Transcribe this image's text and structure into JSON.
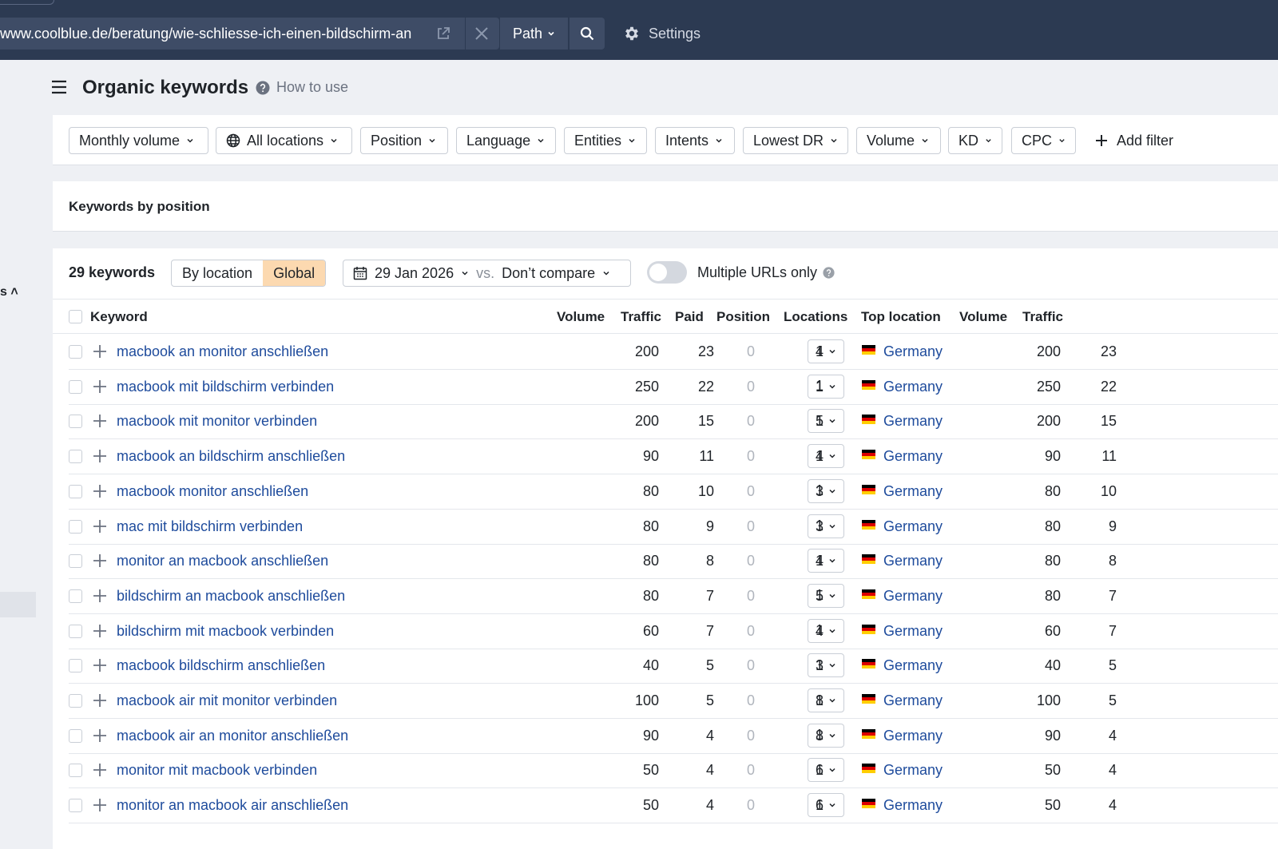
{
  "toolbar": {
    "url": "www.coolblue.de/beratung/wie-schliesse-ich-einen-bildschirm-an",
    "path_label": "Path",
    "settings_label": "Settings"
  },
  "left_rail": {
    "fragment": "s"
  },
  "header": {
    "title": "Organic keywords",
    "how_to": "How to use"
  },
  "filters": [
    "Monthly volume",
    "All locations",
    "Position",
    "Language",
    "Entities",
    "Intents",
    "Lowest DR",
    "Volume",
    "KD",
    "CPC"
  ],
  "add_filter": "Add filter",
  "section_title": "Keywords by position",
  "controls": {
    "count": "29 keywords",
    "by_location": "By location",
    "global": "Global",
    "date": "29 Jan 2026",
    "vs": "vs.",
    "compare": "Don’t compare",
    "multiple_urls": "Multiple URLs only"
  },
  "columns": {
    "keyword": "Keyword",
    "volume": "Volume",
    "traffic": "Traffic",
    "paid": "Paid",
    "position": "Position",
    "locations": "Locations",
    "top_location": "Top location",
    "volume2": "Volume",
    "traffic2": "Traffic"
  },
  "rows": [
    {
      "keyword": "macbook an monitor anschließen",
      "volume": "200",
      "traffic": "23",
      "paid": "0",
      "position": "4",
      "locations": "1",
      "country": "Germany",
      "loc_volume": "200",
      "loc_traffic": "23"
    },
    {
      "keyword": "macbook mit bildschirm verbinden",
      "volume": "250",
      "traffic": "22",
      "paid": "0",
      "position": "1",
      "locations": "1",
      "country": "Germany",
      "loc_volume": "250",
      "loc_traffic": "22"
    },
    {
      "keyword": "macbook mit monitor verbinden",
      "volume": "200",
      "traffic": "15",
      "paid": "0",
      "position": "5",
      "locations": "1",
      "country": "Germany",
      "loc_volume": "200",
      "loc_traffic": "15"
    },
    {
      "keyword": "macbook an bildschirm anschließen",
      "volume": "90",
      "traffic": "11",
      "paid": "0",
      "position": "4",
      "locations": "1",
      "country": "Germany",
      "loc_volume": "90",
      "loc_traffic": "11"
    },
    {
      "keyword": "macbook monitor anschließen",
      "volume": "80",
      "traffic": "10",
      "paid": "0",
      "position": "3",
      "locations": "1",
      "country": "Germany",
      "loc_volume": "80",
      "loc_traffic": "10"
    },
    {
      "keyword": "mac mit bildschirm verbinden",
      "volume": "80",
      "traffic": "9",
      "paid": "0",
      "position": "3",
      "locations": "1",
      "country": "Germany",
      "loc_volume": "80",
      "loc_traffic": "9"
    },
    {
      "keyword": "monitor an macbook anschließen",
      "volume": "80",
      "traffic": "8",
      "paid": "0",
      "position": "4",
      "locations": "1",
      "country": "Germany",
      "loc_volume": "80",
      "loc_traffic": "8"
    },
    {
      "keyword": "bildschirm an macbook anschließen",
      "volume": "80",
      "traffic": "7",
      "paid": "0",
      "position": "5",
      "locations": "1",
      "country": "Germany",
      "loc_volume": "80",
      "loc_traffic": "7"
    },
    {
      "keyword": "bildschirm mit macbook verbinden",
      "volume": "60",
      "traffic": "7",
      "paid": "0",
      "position": "4",
      "locations": "1",
      "country": "Germany",
      "loc_volume": "60",
      "loc_traffic": "7"
    },
    {
      "keyword": "macbook bildschirm anschließen",
      "volume": "40",
      "traffic": "5",
      "paid": "0",
      "position": "3",
      "locations": "1",
      "country": "Germany",
      "loc_volume": "40",
      "loc_traffic": "5"
    },
    {
      "keyword": "macbook air mit monitor verbinden",
      "volume": "100",
      "traffic": "5",
      "paid": "0",
      "position": "8",
      "locations": "1",
      "country": "Germany",
      "loc_volume": "100",
      "loc_traffic": "5"
    },
    {
      "keyword": "macbook air an monitor anschließen",
      "volume": "90",
      "traffic": "4",
      "paid": "0",
      "position": "8",
      "locations": "1",
      "country": "Germany",
      "loc_volume": "90",
      "loc_traffic": "4"
    },
    {
      "keyword": "monitor mit macbook verbinden",
      "volume": "50",
      "traffic": "4",
      "paid": "0",
      "position": "6",
      "locations": "1",
      "country": "Germany",
      "loc_volume": "50",
      "loc_traffic": "4"
    },
    {
      "keyword": "monitor an macbook air anschließen",
      "volume": "50",
      "traffic": "4",
      "paid": "0",
      "position": "6",
      "locations": "1",
      "country": "Germany",
      "loc_volume": "50",
      "loc_traffic": "4"
    }
  ],
  "colors": {
    "topbar": "#2c3a52",
    "link": "#1e4b9c",
    "segment_active": "#fcd9b0",
    "muted": "#b0b5bd"
  },
  "icons": {
    "external_link": "external-link-icon",
    "clear": "close-icon",
    "search": "search-icon",
    "settings": "gear-icon",
    "menu": "hamburger-icon",
    "help": "question-icon",
    "globe": "globe-icon",
    "calendar": "calendar-icon",
    "add": "plus-icon",
    "flag": "germany-flag-icon"
  }
}
